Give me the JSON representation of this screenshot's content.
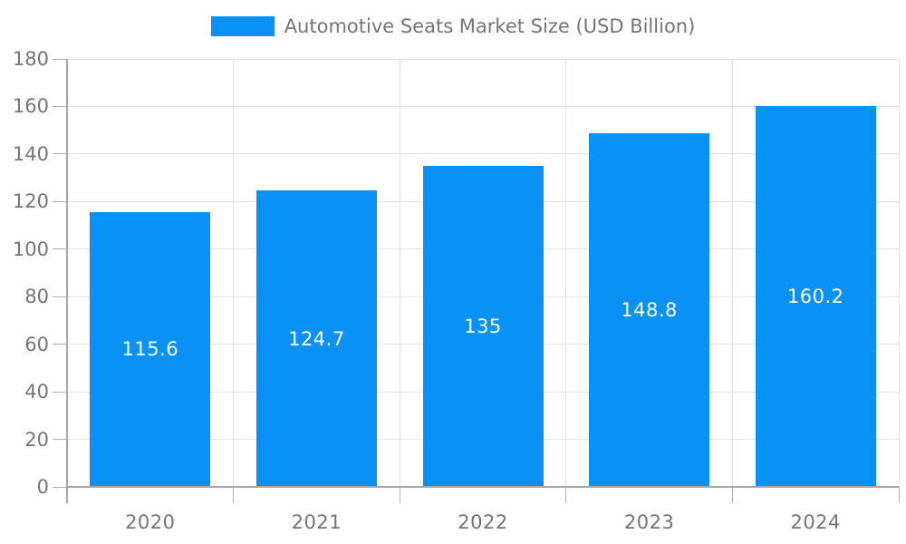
{
  "legend": {
    "label": "Automotive Seats Market Size (USD Billion)"
  },
  "chart_data": {
    "type": "bar",
    "title": "Automotive Seats Market Size (USD Billion)",
    "categories": [
      "2020",
      "2021",
      "2022",
      "2023",
      "2024"
    ],
    "series": [
      {
        "name": "Automotive Seats Market Size (USD Billion)",
        "values": [
          115.6,
          124.7,
          135,
          148.8,
          160.2
        ]
      }
    ],
    "bar_labels": [
      "115.6",
      "124.7",
      "135",
      "148.8",
      "160.2"
    ],
    "xlabel": "",
    "ylabel": "",
    "ylim": [
      0,
      180
    ],
    "y_ticks": [
      0,
      20,
      40,
      60,
      80,
      100,
      120,
      140,
      160,
      180
    ],
    "grid": true,
    "legend_position": "top",
    "colors": {
      "bar": "#0991F5",
      "grid": "#E3E3E3",
      "axis": "#A6A6A6",
      "tick": "#B0B0B0",
      "axis_text": "#757575",
      "bar_label_text": "#FFFFFF"
    }
  }
}
